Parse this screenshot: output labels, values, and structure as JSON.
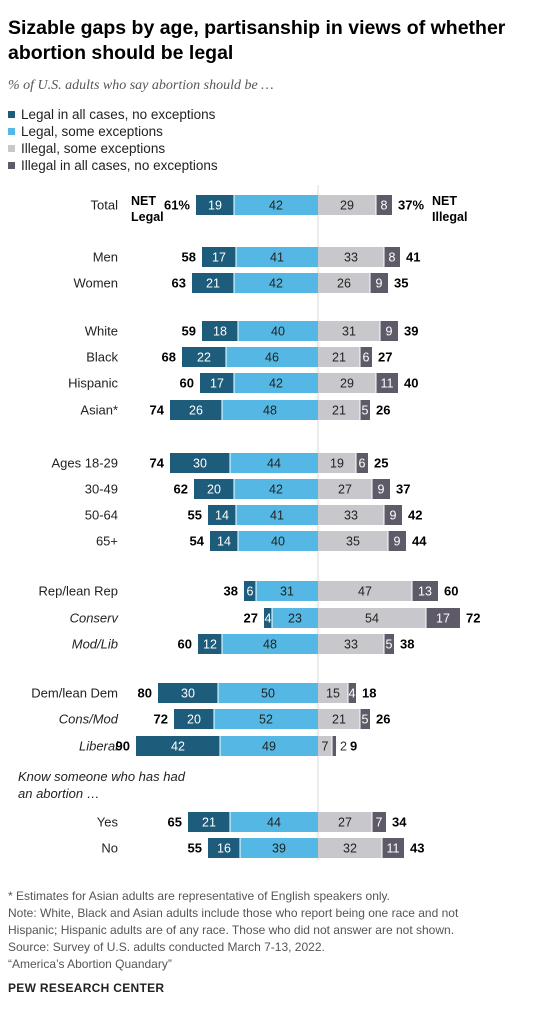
{
  "title": "Sizable gaps by age, partisanship in views of whether abortion should be legal",
  "subtitle": "% of U.S. adults who say abortion should be …",
  "colors": {
    "legal_all": "#1d5c7b",
    "legal_some": "#55b8e4",
    "illegal_some": "#c8c8cc",
    "illegal_all": "#5e5a68"
  },
  "legend": [
    {
      "label": "Legal in all cases, no exceptions",
      "color": "#1d5c7b"
    },
    {
      "label": "Legal, some exceptions",
      "color": "#55b8e4"
    },
    {
      "label": "Illegal, some exceptions",
      "color": "#c8c8cc"
    },
    {
      "label": "Illegal in all cases, no exceptions",
      "color": "#5e5a68"
    }
  ],
  "net_labels": {
    "legal_line1": "NET",
    "legal_line2": "Legal",
    "illegal_line1": "NET",
    "illegal_line2": "Illegal"
  },
  "chart_data": {
    "type": "bar",
    "orientation": "horizontal-diverging",
    "series": [
      {
        "name": "Legal in all cases, no exceptions"
      },
      {
        "name": "Legal, some exceptions"
      },
      {
        "name": "Illegal, some exceptions"
      },
      {
        "name": "Illegal in all cases, no exceptions"
      }
    ],
    "rows": [
      {
        "label": "Total",
        "italic": false,
        "legal_all": 19,
        "legal_some": 42,
        "illegal_some": 29,
        "illegal_all": 8,
        "net_legal": "61%",
        "net_illegal": "37%",
        "group": 0
      },
      {
        "label": "Men",
        "italic": false,
        "legal_all": 17,
        "legal_some": 41,
        "illegal_some": 33,
        "illegal_all": 8,
        "net_legal": "58",
        "net_illegal": "41",
        "group": 1
      },
      {
        "label": "Women",
        "italic": false,
        "legal_all": 21,
        "legal_some": 42,
        "illegal_some": 26,
        "illegal_all": 9,
        "net_legal": "63",
        "net_illegal": "35",
        "group": 1
      },
      {
        "label": "White",
        "italic": false,
        "legal_all": 18,
        "legal_some": 40,
        "illegal_some": 31,
        "illegal_all": 9,
        "net_legal": "59",
        "net_illegal": "39",
        "group": 2
      },
      {
        "label": "Black",
        "italic": false,
        "legal_all": 22,
        "legal_some": 46,
        "illegal_some": 21,
        "illegal_all": 6,
        "net_legal": "68",
        "net_illegal": "27",
        "group": 2
      },
      {
        "label": "Hispanic",
        "italic": false,
        "legal_all": 17,
        "legal_some": 42,
        "illegal_some": 29,
        "illegal_all": 11,
        "net_legal": "60",
        "net_illegal": "40",
        "group": 2
      },
      {
        "label": "Asian*",
        "italic": false,
        "legal_all": 26,
        "legal_some": 48,
        "illegal_some": 21,
        "illegal_all": 5,
        "net_legal": "74",
        "net_illegal": "26",
        "group": 2
      },
      {
        "label": "Ages 18-29",
        "italic": false,
        "legal_all": 30,
        "legal_some": 44,
        "illegal_some": 19,
        "illegal_all": 6,
        "net_legal": "74",
        "net_illegal": "25",
        "group": 3
      },
      {
        "label": "30-49",
        "italic": false,
        "legal_all": 20,
        "legal_some": 42,
        "illegal_some": 27,
        "illegal_all": 9,
        "net_legal": "62",
        "net_illegal": "37",
        "group": 3
      },
      {
        "label": "50-64",
        "italic": false,
        "legal_all": 14,
        "legal_some": 41,
        "illegal_some": 33,
        "illegal_all": 9,
        "net_legal": "55",
        "net_illegal": "42",
        "group": 3
      },
      {
        "label": "65+",
        "italic": false,
        "legal_all": 14,
        "legal_some": 40,
        "illegal_some": 35,
        "illegal_all": 9,
        "net_legal": "54",
        "net_illegal": "44",
        "group": 3
      },
      {
        "label": "Rep/lean Rep",
        "italic": false,
        "legal_all": 6,
        "legal_some": 31,
        "illegal_some": 47,
        "illegal_all": 13,
        "net_legal": "38",
        "net_illegal": "60",
        "group": 4
      },
      {
        "label": "Conserv",
        "italic": true,
        "legal_all": 4,
        "legal_some": 23,
        "illegal_some": 54,
        "illegal_all": 17,
        "net_legal": "27",
        "net_illegal": "72",
        "group": 4
      },
      {
        "label": "Mod/Lib",
        "italic": true,
        "legal_all": 12,
        "legal_some": 48,
        "illegal_some": 33,
        "illegal_all": 5,
        "net_legal": "60",
        "net_illegal": "38",
        "group": 4
      },
      {
        "label": "Dem/lean Dem",
        "italic": false,
        "legal_all": 30,
        "legal_some": 50,
        "illegal_some": 15,
        "illegal_all": 4,
        "net_legal": "80",
        "net_illegal": "18",
        "group": 5
      },
      {
        "label": "Cons/Mod",
        "italic": true,
        "legal_all": 20,
        "legal_some": 52,
        "illegal_some": 21,
        "illegal_all": 5,
        "net_legal": "72",
        "net_illegal": "26",
        "group": 5
      },
      {
        "label": "Liberal",
        "italic": true,
        "legal_all": 42,
        "legal_some": 49,
        "illegal_some": 7,
        "illegal_all": 2,
        "net_legal": "90",
        "net_illegal": "9",
        "group": 5
      },
      {
        "label": "Yes",
        "italic": false,
        "legal_all": 21,
        "legal_some": 44,
        "illegal_some": 27,
        "illegal_all": 7,
        "net_legal": "65",
        "net_illegal": "34",
        "group": 6
      },
      {
        "label": "No",
        "italic": false,
        "legal_all": 16,
        "legal_some": 39,
        "illegal_some": 32,
        "illegal_all": 11,
        "net_legal": "55",
        "net_illegal": "43",
        "group": 6
      }
    ],
    "group_headers": [
      {
        "group": 6,
        "lines": [
          "Know someone who has had",
          "an abortion …"
        ]
      }
    ]
  },
  "footnotes": [
    "* Estimates for Asian adults are representative of English speakers only.",
    "Note: White, Black and Asian adults include those who report being one race and not",
    "Hispanic; Hispanic adults are of any race. Those who did not answer are not shown.",
    "Source: Survey of U.S. adults conducted March 7-13, 2022.",
    "“America’s Abortion Quandary”"
  ],
  "source_org": "PEW RESEARCH CENTER"
}
